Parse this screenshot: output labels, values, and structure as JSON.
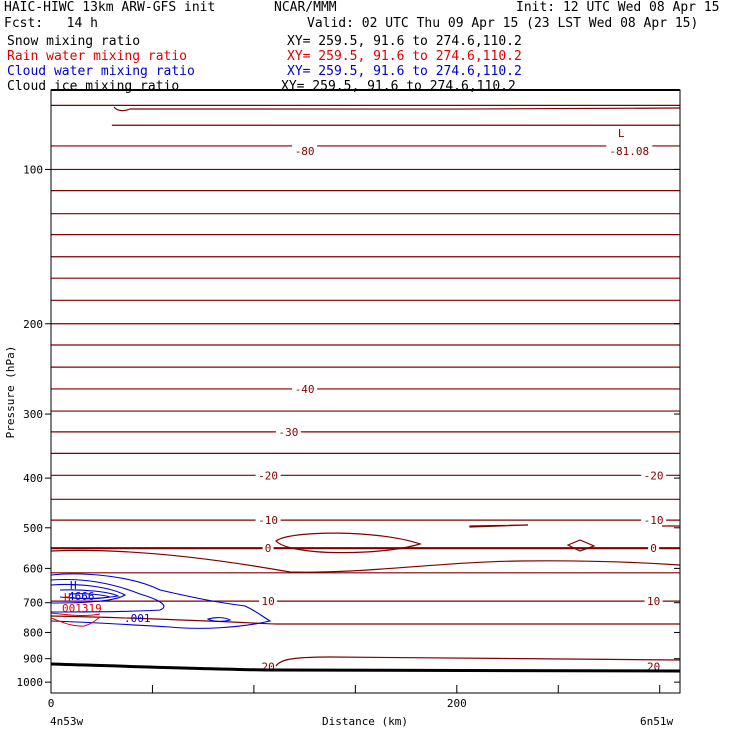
{
  "header": {
    "title_left": "HAIC-HIWC 13km ARW-GFS init",
    "org": "NCAR/MMM",
    "init": "Init: 12 UTC Wed 08 Apr 15",
    "fcst": "Fcst:   14 h",
    "valid": "Valid: 02 UTC Thu 09 Apr 15 (23 LST Wed 08 Apr 15)"
  },
  "legend": [
    {
      "label": "Snow mixing ratio",
      "xy": "XY= 259.5, 91.6 to 274.6,110.2",
      "color": "#000000"
    },
    {
      "label": "Rain water mixing ratio",
      "xy": "XY= 259.5, 91.6 to 274.6,110.2",
      "color": "#e00000"
    },
    {
      "label": "Cloud water mixing ratio",
      "xy": "XY= 259.5, 91.6 to 274.6,110.2",
      "color": "#0000d0"
    },
    {
      "label": "Cloud ice mixing ratio",
      "xy": "XY= 259.5, 91.6 to 274.6,110.2",
      "color": "#000000"
    }
  ],
  "chart_data": {
    "type": "contour",
    "xlabel": "Distance (km)",
    "ylabel": "Pressure (hPa)",
    "x_ticks": [
      "0",
      "200"
    ],
    "x_range_km": [
      0,
      310
    ],
    "y_ticks": [
      "100",
      "200",
      "300",
      "400",
      "500",
      "600",
      "700",
      "800",
      "900",
      "1000"
    ],
    "y_scale": "log",
    "y_range_hPa": [
      70,
      1050
    ],
    "x_endpoints": {
      "left": "4n53w",
      "right": "6n51w"
    },
    "temperature_contours": {
      "color": "#800000",
      "levels": [
        {
          "p": 75
        },
        {
          "p": 82,
          "x_start_km": 30
        },
        {
          "p": 90,
          "label": "-80"
        },
        {
          "p": 100
        },
        {
          "p": 110
        },
        {
          "p": 122
        },
        {
          "p": 134
        },
        {
          "p": 148
        },
        {
          "p": 163
        },
        {
          "p": 180
        },
        {
          "p": 200
        },
        {
          "p": 220
        },
        {
          "p": 243
        },
        {
          "p": 268,
          "label": "-40"
        },
        {
          "p": 296
        },
        {
          "p": 325,
          "label": "-30"
        },
        {
          "p": 358
        },
        {
          "p": 395,
          "label": "-20"
        },
        {
          "p": 440
        },
        {
          "p": 483,
          "label": "-10"
        },
        {
          "p": 548,
          "label": "0",
          "bold": true
        },
        {
          "p": 612
        },
        {
          "p": 695,
          "label": "10"
        }
      ],
      "labels": [
        {
          "text": "-80",
          "x_km": 125,
          "p": 92
        },
        {
          "text": "-81.08",
          "x_km": 285,
          "p": 92
        },
        {
          "text": "L",
          "x_km": 281,
          "p": 85
        },
        {
          "text": "-40",
          "x_km": 125,
          "p": 268
        },
        {
          "text": "-30",
          "x_km": 117,
          "p": 325
        },
        {
          "text": "-20",
          "x_km": 107,
          "p": 395
        },
        {
          "text": "-20",
          "x_km": 297,
          "p": 395
        },
        {
          "text": "-10",
          "x_km": 107,
          "p": 483
        },
        {
          "text": "-10",
          "x_km": 297,
          "p": 483
        },
        {
          "text": "0",
          "x_km": 107,
          "p": 548
        },
        {
          "text": "0",
          "x_km": 297,
          "p": 548
        },
        {
          "text": "10",
          "x_km": 107,
          "p": 695
        },
        {
          "text": "10",
          "x_km": 297,
          "p": 695
        },
        {
          "text": "20",
          "x_km": 107,
          "p": 932
        },
        {
          "text": "20",
          "x_km": 297,
          "p": 932
        }
      ]
    },
    "cloud_water": {
      "color": "#0000d0",
      "max_label": "H",
      "max_value": "4666",
      "contour_label": ".001"
    },
    "rain_water": {
      "color": "#e00000",
      "max_label": "H",
      "max_value": "001319"
    },
    "ground_color": "#000000"
  }
}
